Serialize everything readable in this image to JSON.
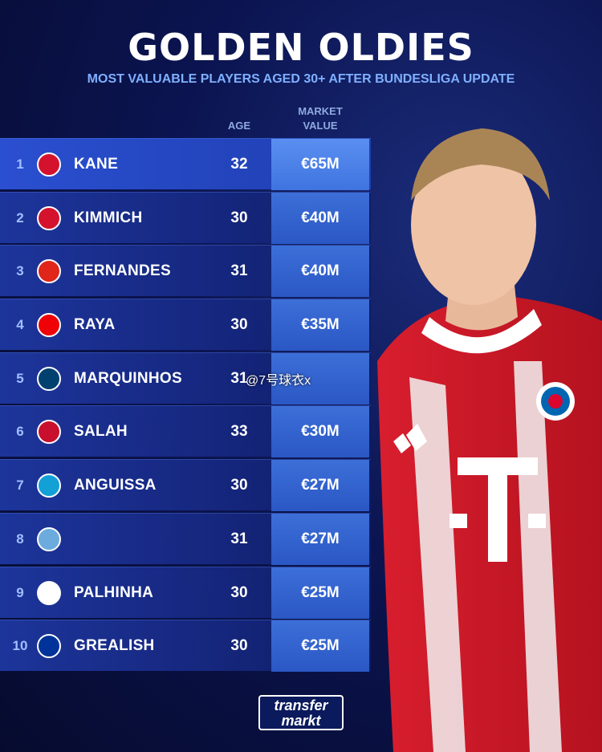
{
  "header": {
    "title": "GOLDEN OLDIES",
    "subtitle": "MOST VALUABLE PLAYERS AGED 30+ AFTER BUNDESLIGA UPDATE"
  },
  "columns": {
    "age": "AGE",
    "value_line1": "MARKET",
    "value_line2": "VALUE"
  },
  "rows": [
    {
      "rank": "1",
      "name": "KANE",
      "age": "32",
      "value": "€65M",
      "club_icon": "bayern-icon",
      "color": "#d5122e"
    },
    {
      "rank": "2",
      "name": "KIMMICH",
      "age": "30",
      "value": "€40M",
      "club_icon": "bayern-icon",
      "color": "#d5122e"
    },
    {
      "rank": "3",
      "name": "FERNANDES",
      "age": "31",
      "value": "€40M",
      "club_icon": "man-utd-icon",
      "color": "#e0251b"
    },
    {
      "rank": "4",
      "name": "RAYA",
      "age": "30",
      "value": "€35M",
      "club_icon": "arsenal-icon",
      "color": "#ef0107"
    },
    {
      "rank": "5",
      "name": "MARQUINHOS",
      "age": "31",
      "value": "",
      "club_icon": "psg-icon",
      "color": "#004170"
    },
    {
      "rank": "6",
      "name": "SALAH",
      "age": "33",
      "value": "€30M",
      "club_icon": "liverpool-icon",
      "color": "#c8102e"
    },
    {
      "rank": "7",
      "name": "ANGUISSA",
      "age": "30",
      "value": "€27M",
      "club_icon": "napoli-icon",
      "color": "#12a0d7"
    },
    {
      "rank": "8",
      "name": "",
      "age": "31",
      "value": "€27M",
      "club_icon": "man-city-icon",
      "color": "#6cabdd"
    },
    {
      "rank": "9",
      "name": "PALHINHA",
      "age": "30",
      "value": "€25M",
      "club_icon": "tottenham-icon",
      "color": "#ffffff"
    },
    {
      "rank": "10",
      "name": "GREALISH",
      "age": "30",
      "value": "€25M",
      "club_icon": "everton-icon",
      "color": "#003399"
    }
  ],
  "watermark": "@7号球衣x",
  "brand": {
    "line1": "transfer",
    "line2": "markt"
  }
}
